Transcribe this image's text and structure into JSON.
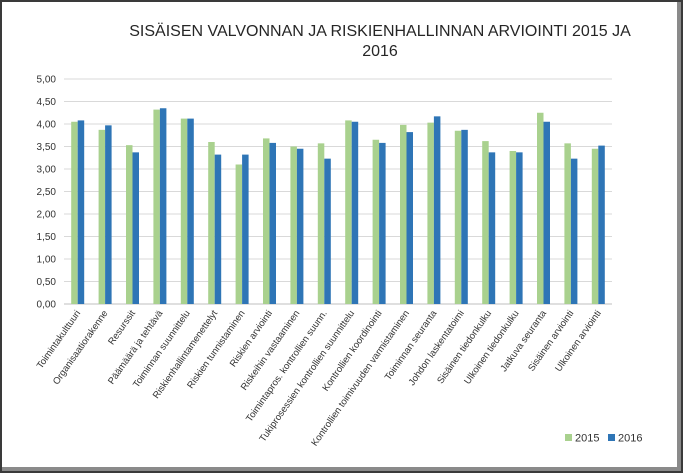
{
  "chart_data": {
    "type": "bar",
    "title_lines": [
      "SISÄISEN VALVONNAN JA RISKIENHALLINNAN ARVIOINTI 2015 JA",
      "2016"
    ],
    "xlabel": "",
    "ylabel": "",
    "ylim": [
      0,
      5
    ],
    "yticks": [
      "0,00",
      "0,50",
      "1,00",
      "1,50",
      "2,00",
      "2,50",
      "3,00",
      "3,50",
      "4,00",
      "4,50",
      "5,00"
    ],
    "grid": true,
    "legend_position": "bottom-right",
    "categories": [
      "Toimintakulttuuri",
      "Organisaatiorakenne",
      "Resurssit",
      "Päämäärä ja tehtävä",
      "Toiminnan suunnittelu",
      "Riskienhallintamenettelyt",
      "Riskien tunnistaminen",
      "Riskien arviointi",
      "Riskeihin vastaaminen",
      "Toimintapros. kontrollien suunn.",
      "Tukiprosessien kontrollien suunnittelu",
      "Kontrollien koordinointi",
      "Kontrollien toimivuuden varmistaminen",
      "Toiminnan seuranta",
      "Johdon laskentatoimi",
      "Sisäinen tiedonkulku",
      "Ulkoinen tiedonkulku",
      "Jatkuva seuranta",
      "Sisäinen arviointi",
      "Ulkoinen arviointi"
    ],
    "series": [
      {
        "name": "2015",
        "color": "#a9d18e",
        "values": [
          4.05,
          3.87,
          3.53,
          4.32,
          4.12,
          3.6,
          3.1,
          3.68,
          3.5,
          3.57,
          4.08,
          3.65,
          3.98,
          4.03,
          3.85,
          3.62,
          3.4,
          4.25,
          3.57,
          3.45
        ]
      },
      {
        "name": "2016",
        "color": "#2e75b6",
        "values": [
          4.08,
          3.97,
          3.37,
          4.35,
          4.12,
          3.32,
          3.32,
          3.58,
          3.45,
          3.23,
          4.05,
          3.58,
          3.82,
          4.17,
          3.87,
          3.37,
          3.37,
          4.05,
          3.23,
          3.52
        ]
      }
    ]
  }
}
